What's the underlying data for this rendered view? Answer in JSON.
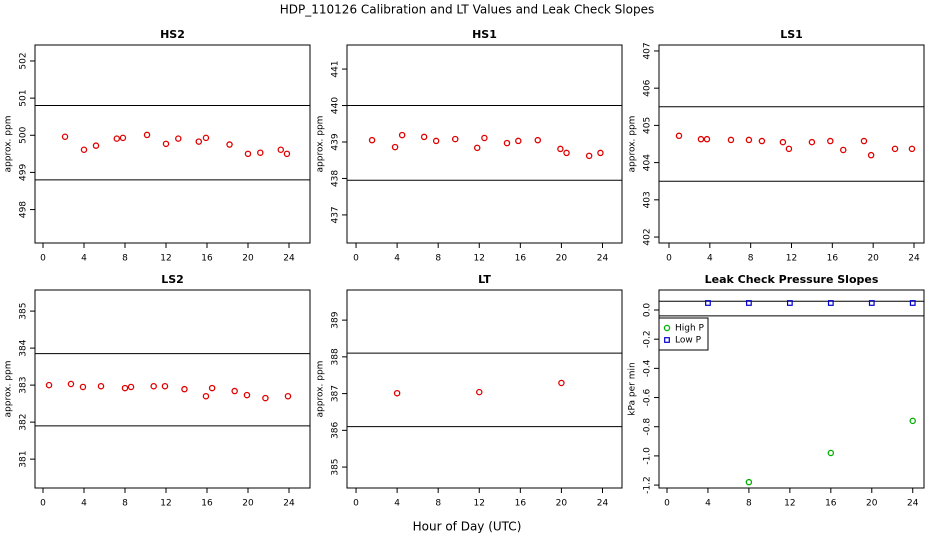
{
  "title": "HDP_110126  Calibration and LT Values and Leak Check Slopes",
  "xlabel": "Hour of Day (UTC)",
  "chart_data": [
    {
      "type": "scatter",
      "title": "HS2",
      "ylabel": "approx. ppm",
      "xlim": [
        -0.78,
        26.05
      ],
      "ylim": [
        497.1,
        502.43
      ],
      "xticks": [
        0,
        4,
        8,
        12,
        16,
        20,
        24
      ],
      "yticks": [
        498,
        499,
        500,
        501,
        502
      ],
      "hlines": [
        500.8,
        498.8
      ],
      "series": [
        {
          "color": "#e00000",
          "marker": "circle",
          "x": [
            2.15,
            4.0,
            5.17,
            7.2,
            7.8,
            10.15,
            12.0,
            13.2,
            15.2,
            15.9,
            18.2,
            20.0,
            21.2,
            23.2,
            23.8
          ],
          "values": [
            499.96,
            499.61,
            499.72,
            499.91,
            499.93,
            500.01,
            499.77,
            499.91,
            499.83,
            499.93,
            499.75,
            499.5,
            499.53,
            499.61,
            499.5
          ]
        }
      ]
    },
    {
      "type": "scatter",
      "title": "HS1",
      "ylabel": "approx. ppm",
      "xlim": [
        -0.88,
        25.9
      ],
      "ylim": [
        436.23,
        441.66
      ],
      "xticks": [
        0,
        4,
        8,
        12,
        16,
        20,
        24
      ],
      "yticks": [
        437,
        438,
        439,
        440,
        441
      ],
      "hlines": [
        440.0,
        437.95
      ],
      "series": [
        {
          "color": "#e00000",
          "marker": "circle",
          "x": [
            1.56,
            3.8,
            4.49,
            6.63,
            7.8,
            9.66,
            11.8,
            12.5,
            14.7,
            15.8,
            17.7,
            19.9,
            20.5,
            22.7,
            23.8
          ],
          "values": [
            439.05,
            438.86,
            439.19,
            439.14,
            439.03,
            439.08,
            438.84,
            439.11,
            438.97,
            439.03,
            439.05,
            438.81,
            438.7,
            438.62,
            438.7
          ]
        }
      ]
    },
    {
      "type": "scatter",
      "title": "LS1",
      "ylabel": "approx. ppm",
      "xlim": [
        -0.98,
        24.98
      ],
      "ylim": [
        401.84,
        407.16
      ],
      "xticks": [
        0,
        4,
        8,
        12,
        16,
        20,
        24
      ],
      "yticks": [
        402,
        403,
        404,
        405,
        406,
        407
      ],
      "hlines": [
        405.5,
        403.5
      ],
      "series": [
        {
          "color": "#e00000",
          "marker": "circle",
          "x": [
            0.98,
            3.13,
            3.72,
            6.07,
            7.83,
            9.1,
            11.16,
            11.75,
            14.0,
            15.8,
            17.07,
            19.1,
            19.8,
            22.14,
            23.8
          ],
          "values": [
            404.72,
            404.63,
            404.63,
            404.61,
            404.61,
            404.58,
            404.55,
            404.37,
            404.55,
            404.58,
            404.34,
            404.58,
            404.2,
            404.37,
            404.37
          ]
        }
      ]
    },
    {
      "type": "scatter",
      "title": "LS2",
      "ylabel": "approx. ppm",
      "xlim": [
        -0.78,
        26.05
      ],
      "ylim": [
        380.22,
        385.57
      ],
      "xticks": [
        0,
        4,
        8,
        12,
        16,
        20,
        24
      ],
      "yticks": [
        381,
        382,
        383,
        384,
        385
      ],
      "hlines": [
        383.85,
        381.9
      ],
      "series": [
        {
          "color": "#e00000",
          "marker": "circle",
          "x": [
            0.59,
            2.73,
            3.9,
            5.66,
            8.0,
            8.59,
            10.8,
            11.9,
            13.8,
            15.9,
            16.5,
            18.7,
            19.9,
            21.7,
            23.9
          ],
          "values": [
            383.0,
            383.03,
            382.95,
            382.97,
            382.92,
            382.95,
            382.97,
            382.97,
            382.89,
            382.7,
            382.92,
            382.84,
            382.73,
            382.65,
            382.7
          ]
        }
      ]
    },
    {
      "type": "scatter",
      "title": "LT",
      "ylabel": "approx. ppm",
      "xlim": [
        -0.88,
        25.9
      ],
      "ylim": [
        384.43,
        389.82
      ],
      "xticks": [
        0,
        4,
        8,
        12,
        16,
        20,
        24
      ],
      "yticks": [
        385,
        386,
        387,
        388,
        389
      ],
      "hlines": [
        388.1,
        386.1
      ],
      "series": [
        {
          "color": "#e00000",
          "marker": "circle",
          "x": [
            4.0,
            12.0,
            20.0
          ],
          "values": [
            387.01,
            387.04,
            387.29
          ]
        }
      ]
    },
    {
      "type": "scatter",
      "title": "Leak Check Pressure Slopes",
      "ylabel": "kPa per min",
      "xlim": [
        -0.78,
        25.1
      ],
      "ylim": [
        -1.22,
        0.137
      ],
      "xticks": [
        0,
        4,
        8,
        12,
        16,
        20,
        24
      ],
      "yticks": [
        {
          "value": -1.2,
          "label": "-1.2"
        },
        {
          "value": -1,
          "label": "-1.0"
        },
        -0.8,
        -0.6,
        -0.4,
        -0.2,
        {
          "value": 0,
          "label": "0.0"
        }
      ],
      "hlines": [
        0.06,
        -0.04
      ],
      "legend": "top-left",
      "series": [
        {
          "name": "High P",
          "color": "#00b000",
          "marker": "circle",
          "x": [
            8,
            16,
            24
          ],
          "values": [
            -1.18,
            -0.98,
            -0.76
          ]
        },
        {
          "name": "Low P",
          "color": "#0000d0",
          "marker": "square",
          "x": [
            4,
            8,
            12,
            16,
            20,
            24
          ],
          "values": [
            0.048,
            0.048,
            0.048,
            0.048,
            0.048,
            0.048
          ]
        }
      ]
    }
  ]
}
